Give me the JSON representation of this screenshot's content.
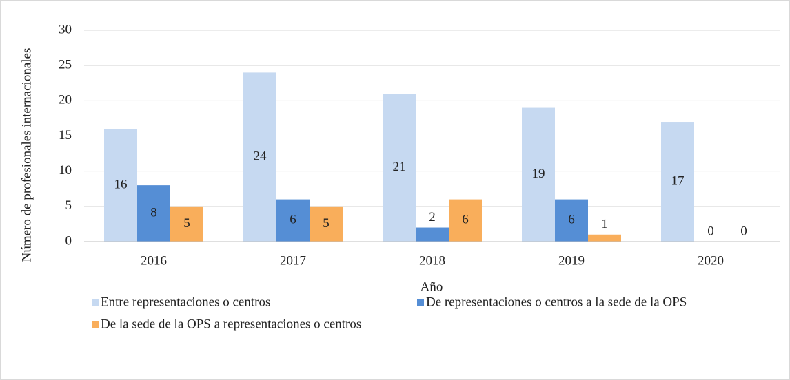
{
  "chart_data": {
    "type": "bar",
    "y_label": "Número de profesionales internacionales",
    "x_label": "Año",
    "categories": [
      "2016",
      "2017",
      "2018",
      "2019",
      "2020"
    ],
    "series": [
      {
        "name": "Entre representaciones o centros",
        "color": "#c6d9f1",
        "values": [
          16,
          24,
          21,
          19,
          17
        ]
      },
      {
        "name": "De representaciones o centros a la sede de la OPS",
        "color": "#558ed5",
        "values": [
          8,
          6,
          2,
          6,
          0
        ]
      },
      {
        "name": "De la sede de la OPS a representaciones o centros",
        "color": "#f9ae5b",
        "values": [
          5,
          5,
          6,
          1,
          0
        ]
      }
    ],
    "ylim": [
      0,
      30
    ],
    "yticks": [
      0,
      5,
      10,
      15,
      20,
      25,
      30
    ],
    "grid": true,
    "legend": "bottom"
  }
}
